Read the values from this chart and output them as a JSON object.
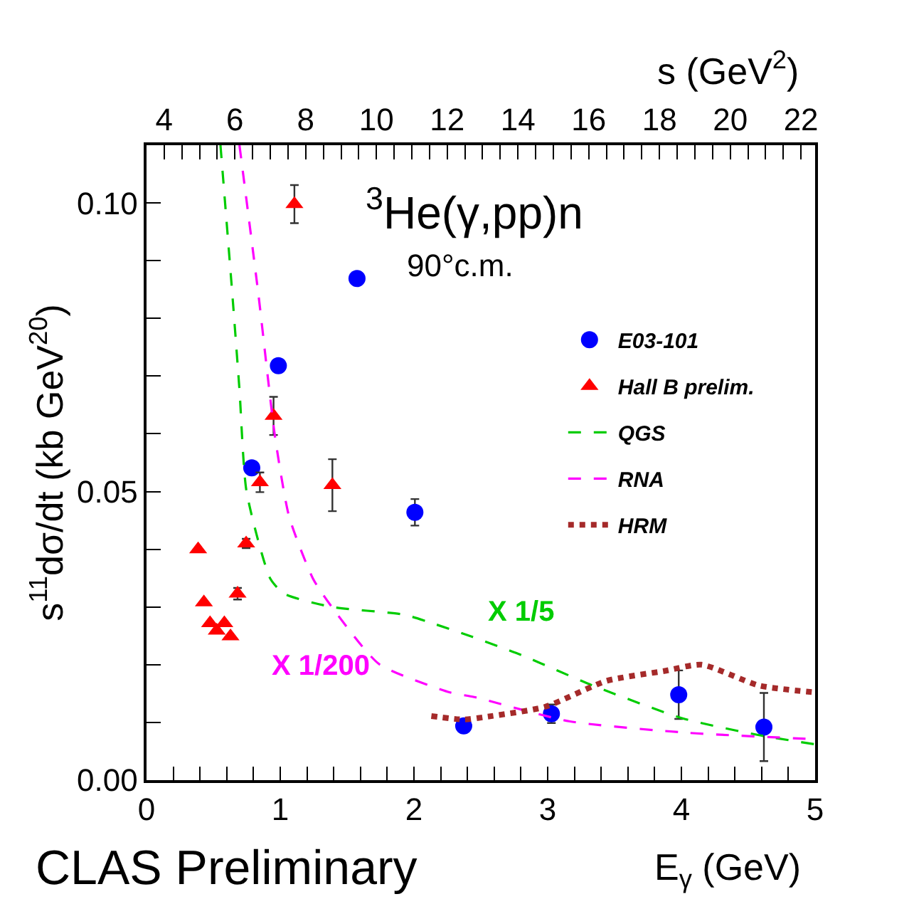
{
  "chart_data": {
    "type": "scatter",
    "xlabel": "E$_{γ}$ (GeV)",
    "ylabel": "s$^{11}$dσ/dt (kb GeV$^{20}$)",
    "x2label": "s (GeV$^{2}$)",
    "xlim": [
      0,
      5
    ],
    "ylim": [
      0,
      0.11
    ],
    "x2lim": [
      3.5,
      22.4
    ],
    "xticks": [
      0,
      {
        "value": 0.2,
        "label": null
      },
      {
        "value": 0.4,
        "label": null
      },
      {
        "value": 0.6,
        "label": null
      },
      {
        "value": 0.8,
        "label": null
      },
      1,
      {
        "value": 1.2,
        "label": null
      },
      {
        "value": 1.4,
        "label": null
      },
      {
        "value": 1.6,
        "label": null
      },
      {
        "value": 1.8,
        "label": null
      },
      2,
      {
        "value": 2.2,
        "label": null
      },
      {
        "value": 2.4,
        "label": null
      },
      {
        "value": 2.6,
        "label": null
      },
      {
        "value": 2.8,
        "label": null
      },
      3,
      {
        "value": 3.2,
        "label": null
      },
      {
        "value": 3.4,
        "label": null
      },
      {
        "value": 3.6,
        "label": null
      },
      {
        "value": 3.8,
        "label": null
      },
      4,
      {
        "value": 4.2,
        "label": null
      },
      {
        "value": 4.4,
        "label": null
      },
      {
        "value": 4.6,
        "label": null
      },
      {
        "value": 4.8,
        "label": null
      },
      5
    ],
    "yticks": [
      {
        "value": 0,
        "label": "0.00"
      },
      {
        "value": 0.01,
        "label": null
      },
      {
        "value": 0.02,
        "label": null
      },
      {
        "value": 0.03,
        "label": null
      },
      {
        "value": 0.04,
        "label": null
      },
      {
        "value": 0.05,
        "label": "0.05"
      },
      {
        "value": 0.06,
        "label": null
      },
      {
        "value": 0.07,
        "label": null
      },
      {
        "value": 0.08,
        "label": null
      },
      {
        "value": 0.09,
        "label": null
      },
      {
        "value": 0.1,
        "label": "0.10"
      }
    ],
    "x2ticks": [
      4,
      {
        "value": 4.5,
        "label": null
      },
      {
        "value": 5,
        "label": null
      },
      {
        "value": 5.5,
        "label": null
      },
      6,
      {
        "value": 6.5,
        "label": null
      },
      {
        "value": 7,
        "label": null
      },
      {
        "value": 7.5,
        "label": null
      },
      8,
      {
        "value": 8.5,
        "label": null
      },
      {
        "value": 9,
        "label": null
      },
      {
        "value": 9.5,
        "label": null
      },
      10,
      {
        "value": 10.5,
        "label": null
      },
      {
        "value": 11,
        "label": null
      },
      {
        "value": 11.5,
        "label": null
      },
      12,
      {
        "value": 12.5,
        "label": null
      },
      {
        "value": 13,
        "label": null
      },
      {
        "value": 13.5,
        "label": null
      },
      14,
      {
        "value": 14.5,
        "label": null
      },
      {
        "value": 15,
        "label": null
      },
      {
        "value": 15.5,
        "label": null
      },
      16,
      {
        "value": 16.5,
        "label": null
      },
      {
        "value": 17,
        "label": null
      },
      {
        "value": 17.5,
        "label": null
      },
      18,
      {
        "value": 18.5,
        "label": null
      },
      {
        "value": 19,
        "label": null
      },
      {
        "value": 19.5,
        "label": null
      },
      20,
      {
        "value": 20.5,
        "label": null
      },
      {
        "value": 21,
        "label": null
      },
      {
        "value": 21.5,
        "label": null
      },
      22
    ],
    "legend": "top right",
    "series": [
      {
        "name": "E03-101",
        "marker": "circle",
        "color": "#0000ff",
        "x": [
          0.787,
          0.986,
          1.574,
          2.007,
          2.372,
          3.028,
          3.98,
          4.617
        ],
        "values": [
          0.0541,
          0.0718,
          0.0869,
          0.0464,
          0.0094,
          0.0115,
          0.0148,
          0.0092
        ],
        "errors": [
          null,
          null,
          null,
          0.0023,
          null,
          0.0016,
          0.0042,
          0.0059
        ]
      },
      {
        "name": "Hall B prelim.",
        "marker": "triangle",
        "color": "#ff0000",
        "x": [
          0.386,
          0.429,
          0.475,
          0.525,
          0.582,
          0.628,
          0.681,
          0.745,
          0.848,
          0.95,
          1.106,
          1.39
        ],
        "values": [
          0.04,
          0.0308,
          0.0272,
          0.0259,
          0.0272,
          0.0249,
          0.0323,
          0.041,
          0.0516,
          0.0631,
          0.0998,
          0.0511
        ],
        "errors": [
          null,
          null,
          null,
          null,
          null,
          null,
          0.001,
          0.0008,
          0.0017,
          0.0033,
          0.0033,
          0.0045
        ]
      },
      {
        "name": "QGS",
        "type": "line",
        "line_style": "dashed",
        "color": "#00cc00",
        "x": [
          0.553,
          0.642,
          0.695,
          0.748,
          0.926,
          1.03,
          1.386,
          1.92,
          2.096,
          2.415,
          2.8,
          3.336,
          4.01,
          4.58,
          5.0
        ],
        "values": [
          0.11,
          0.0841,
          0.0677,
          0.05,
          0.0349,
          0.0323,
          0.03,
          0.0287,
          0.0275,
          0.025,
          0.0217,
          0.0164,
          0.0107,
          0.0078,
          0.0062
        ]
      },
      {
        "name": "RNA",
        "type": "line",
        "line_style": "dashed",
        "color": "#ff00ff",
        "x": [
          0.695,
          0.837,
          0.961,
          1.067,
          1.245,
          1.386,
          1.74,
          2.27,
          2.45,
          3.16,
          4.05,
          5.0
        ],
        "values": [
          0.11,
          0.0841,
          0.0595,
          0.0456,
          0.0349,
          0.03,
          0.0201,
          0.0152,
          0.0144,
          0.0102,
          0.0082,
          0.0071
        ]
      },
      {
        "name": "HRM",
        "type": "line",
        "line_style": "dotted",
        "color": "#a52a2a",
        "x": [
          2.13,
          2.37,
          2.52,
          2.98,
          3.44,
          3.87,
          4.15,
          4.58,
          5.0
        ],
        "values": [
          0.0111,
          0.0105,
          0.0109,
          0.0127,
          0.0172,
          0.0189,
          0.02,
          0.0164,
          0.0152
        ]
      }
    ],
    "annotations": [
      "$^{3}$He(γ,pp)n",
      "90°c.m.",
      "X 1/5",
      "X 1/200",
      "CLAS Preliminary"
    ]
  }
}
